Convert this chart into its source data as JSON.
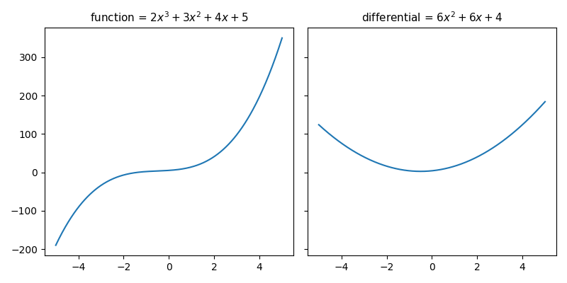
{
  "title_left": "function = $2x^3 + 3x^2 + 4x + 5$",
  "title_right": "differential = $6x^2 + 6x + 4$",
  "x_min": -5,
  "x_max": 5,
  "line_color": "#1f77b4",
  "figsize": [
    8.0,
    4.0
  ],
  "dpi": 100,
  "title_fontsize": 11
}
